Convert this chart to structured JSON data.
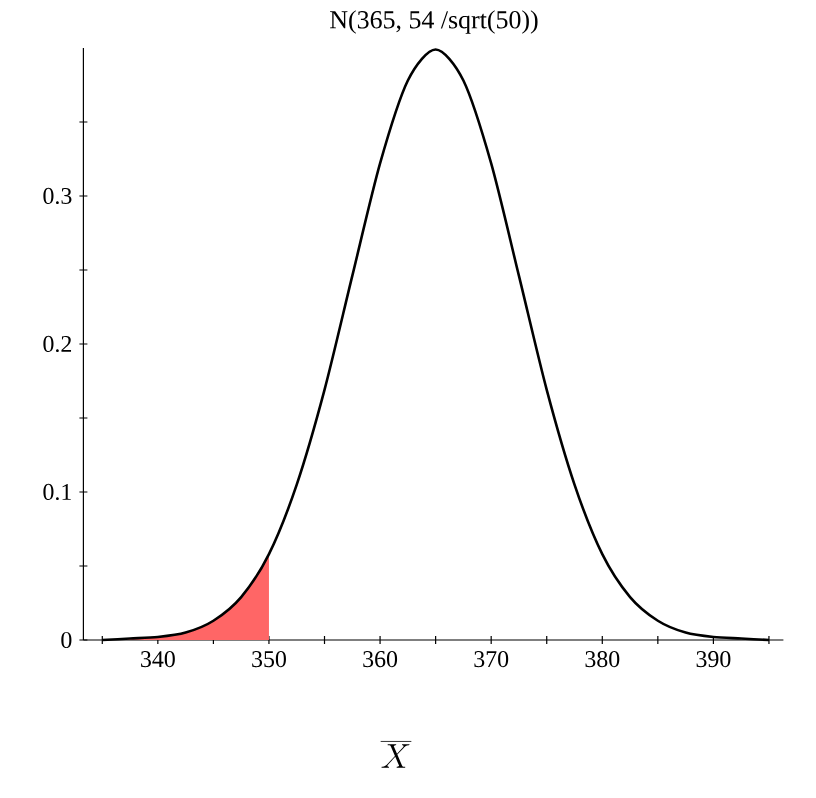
{
  "chart_data": {
    "type": "line",
    "title": "N(365, 54 /sqrt(50))",
    "xlabel": "\\overline{X}",
    "x": [
      335,
      337.5,
      340,
      342.5,
      345,
      347.5,
      350,
      352.5,
      355,
      357.5,
      360,
      362.5,
      365,
      367.5,
      370,
      372.5,
      375,
      377.5,
      380,
      382.5,
      385,
      387.5,
      390,
      392.5,
      395
    ],
    "series": [
      {
        "color": "#000000",
        "values": [
          0,
          0.001,
          0.002,
          0.005,
          0.013,
          0.029,
          0.058,
          0.105,
          0.169,
          0.246,
          0.322,
          0.378,
          0.399,
          0.378,
          0.322,
          0.246,
          0.169,
          0.105,
          0.058,
          0.029,
          0.013,
          0.005,
          0.002,
          0.001,
          0
        ]
      },
      {
        "type": "area",
        "color": "#ff6666",
        "x": [
          335,
          337.5,
          340,
          342.5,
          345,
          347.5,
          350
        ],
        "values": [
          0,
          0.001,
          0.002,
          0.005,
          0.013,
          0.029,
          0.058
        ]
      }
    ],
    "xlim": [
      333.3,
      396.3
    ],
    "ylim": [
      0,
      0.4
    ],
    "xticks": [
      {
        "value": 335,
        "label": null
      },
      340,
      {
        "value": 345,
        "label": null
      },
      350,
      {
        "value": 355,
        "label": null
      },
      360,
      {
        "value": 365,
        "label": null
      },
      370,
      {
        "value": 375,
        "label": null
      },
      380,
      {
        "value": 385,
        "label": null
      },
      390,
      {
        "value": 395,
        "label": null
      }
    ],
    "yticks": [
      0,
      {
        "value": 0.05,
        "label": null
      },
      0.1,
      {
        "value": 0.15,
        "label": null
      },
      0.2,
      {
        "value": 0.25,
        "label": null
      },
      0.3,
      {
        "value": 0.35,
        "label": null
      }
    ]
  }
}
